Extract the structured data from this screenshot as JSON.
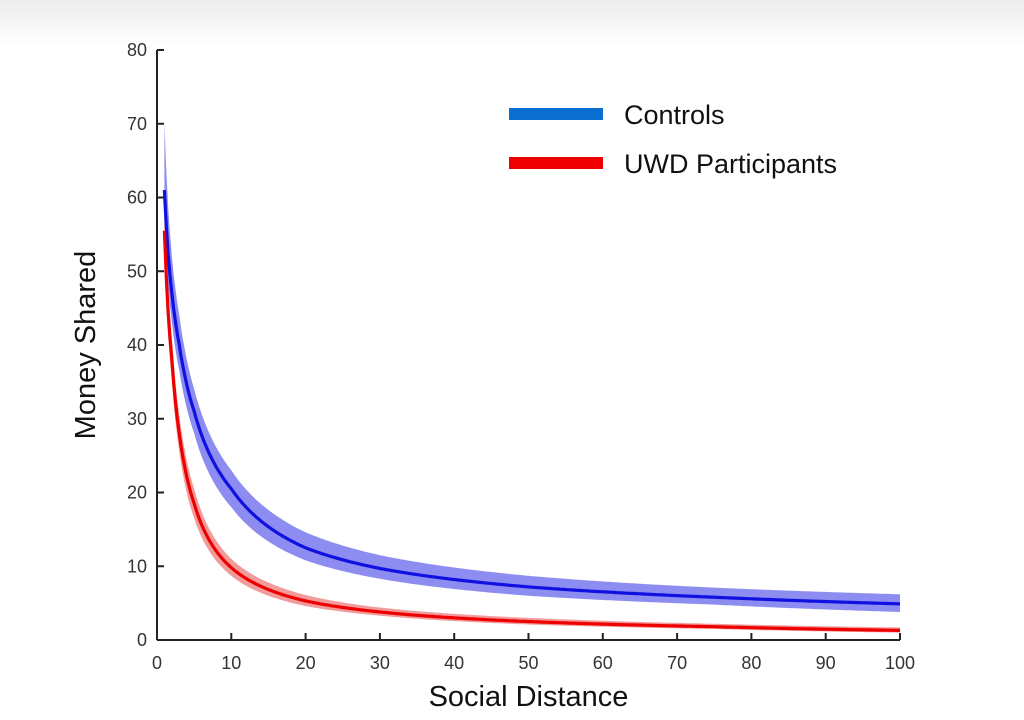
{
  "chart_data": {
    "type": "line",
    "xlabel": "Social Distance",
    "ylabel": "Money Shared",
    "xlim": [
      0,
      100
    ],
    "ylim": [
      0,
      80
    ],
    "xticks": [
      0,
      10,
      20,
      30,
      40,
      50,
      60,
      70,
      80,
      90,
      100
    ],
    "yticks": [
      0,
      10,
      20,
      30,
      40,
      50,
      60,
      70,
      80
    ],
    "grid": false,
    "legend_position": "top-right",
    "x": [
      1,
      2,
      3,
      5,
      10,
      20,
      30,
      50,
      75,
      100
    ],
    "series": [
      {
        "name": "Controls",
        "color": "#1010e0",
        "band_color": "#7878ee",
        "values": [
          61,
          47,
          40,
          31,
          20.5,
          12.5,
          9.7,
          7.2,
          5.8,
          4.9
        ],
        "lower": [
          56,
          43,
          36.5,
          28,
          18,
          10.8,
          8.3,
          6.0,
          4.8,
          3.8
        ],
        "upper": [
          70,
          52,
          44,
          34,
          23,
          14.6,
          11.5,
          8.7,
          7.1,
          6.2
        ]
      },
      {
        "name": "UWD Participants",
        "color": "#ee0000",
        "band_color": "#f08a8a",
        "values": [
          55.5,
          38,
          28,
          18.5,
          9.8,
          5.3,
          3.8,
          2.5,
          1.8,
          1.3
        ],
        "lower": [
          52,
          35,
          25.5,
          16.5,
          8.7,
          4.6,
          3.3,
          2.1,
          1.5,
          1.0
        ],
        "upper": [
          59,
          41,
          30.5,
          20.5,
          11.0,
          6.1,
          4.4,
          3.0,
          2.2,
          1.7
        ]
      }
    ]
  }
}
